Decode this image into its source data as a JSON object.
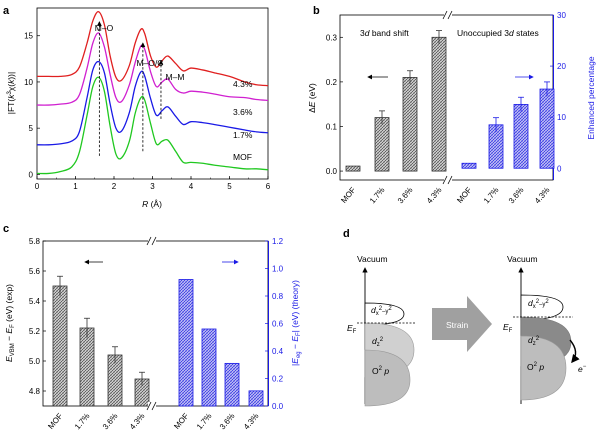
{
  "panels": {
    "a": "a",
    "b": "b",
    "c": "c",
    "d": "d"
  },
  "colors": {
    "red": "#e02020",
    "magenta": "#d020d0",
    "blue": "#1a1ae6",
    "green": "#20c820",
    "hatch_black": "#555555",
    "hatch_blue": "#3a3ae6",
    "axis_blue": "#1a1ae6",
    "grey_cone": "#bdbdbd",
    "dark_cone": "#8a8a8a",
    "arrow_grey": "#a0a0a0"
  },
  "chart_data": [
    {
      "id": "a",
      "type": "line",
      "xlabel": "R (Å)",
      "ylabel": "|FT(k³χ(k))|",
      "xlim": [
        0,
        6
      ],
      "ylim": [
        -0.5,
        18
      ],
      "xticks": [
        "0",
        "1",
        "2",
        "3",
        "4",
        "5",
        "6"
      ],
      "yticks": [
        "0",
        "5",
        "10",
        "15"
      ],
      "annotations": [
        "M–O",
        "M–O/C",
        "M–M"
      ],
      "series": [
        {
          "name": "4.3%",
          "color": "#e02020",
          "x": [
            0,
            0.3,
            0.6,
            0.9,
            1.1,
            1.3,
            1.45,
            1.6,
            1.75,
            1.9,
            2.05,
            2.2,
            2.4,
            2.55,
            2.7,
            2.8,
            2.95,
            3.1,
            3.25,
            3.4,
            3.6,
            3.8,
            4.0,
            4.3,
            4.6,
            5.0,
            5.4,
            5.7,
            6.0
          ],
          "y": [
            10.6,
            10.6,
            10.6,
            10.8,
            11.6,
            14.2,
            16.6,
            17.6,
            16.2,
            12.8,
            10.5,
            10.2,
            11.8,
            14.2,
            15.7,
            15.2,
            12.8,
            11.6,
            12.3,
            12.8,
            12.0,
            11.2,
            11.5,
            11.3,
            11.0,
            10.6,
            10.0,
            9.7,
            9.6
          ]
        },
        {
          "name": "3.6%",
          "color": "#d020d0",
          "x": [
            0,
            0.3,
            0.6,
            0.9,
            1.1,
            1.3,
            1.45,
            1.6,
            1.75,
            1.9,
            2.05,
            2.2,
            2.4,
            2.55,
            2.7,
            2.8,
            2.95,
            3.1,
            3.25,
            3.4,
            3.6,
            3.8,
            4.0,
            4.3,
            4.6,
            5.0,
            5.4,
            5.7,
            6.0
          ],
          "y": [
            7.5,
            7.5,
            7.6,
            7.8,
            8.6,
            11.5,
            14.2,
            15.3,
            13.8,
            10.8,
            8.3,
            7.9,
            9.7,
            12.1,
            13.9,
            13.5,
            11.1,
            9.5,
            10.0,
            10.3,
            9.2,
            8.8,
            9.0,
            8.9,
            8.7,
            8.4,
            8.3,
            8.1,
            8.0
          ]
        },
        {
          "name": "1.7%",
          "color": "#1a1ae6",
          "x": [
            0,
            0.3,
            0.6,
            0.9,
            1.1,
            1.3,
            1.45,
            1.6,
            1.75,
            1.9,
            2.05,
            2.2,
            2.4,
            2.55,
            2.7,
            2.8,
            2.95,
            3.1,
            3.25,
            3.4,
            3.6,
            3.8,
            4.0,
            4.3,
            4.6,
            5.0,
            5.4,
            5.7,
            6.0
          ],
          "y": [
            3.2,
            3.2,
            3.3,
            3.6,
            4.6,
            8.3,
            11.3,
            12.2,
            11.0,
            7.6,
            5.0,
            4.7,
            6.7,
            9.5,
            11.1,
            10.6,
            8.2,
            6.4,
            6.9,
            7.3,
            6.3,
            5.4,
            5.7,
            5.6,
            5.4,
            5.1,
            4.8,
            4.6,
            4.5
          ]
        },
        {
          "name": "MOF",
          "color": "#20c820",
          "x": [
            0,
            0.3,
            0.6,
            0.9,
            1.1,
            1.3,
            1.45,
            1.6,
            1.75,
            1.9,
            2.05,
            2.2,
            2.4,
            2.55,
            2.7,
            2.8,
            2.95,
            3.1,
            3.25,
            3.4,
            3.6,
            3.8,
            4.0,
            4.3,
            4.6,
            5.0,
            5.4,
            5.7,
            6.0
          ],
          "y": [
            0.1,
            0.1,
            0.3,
            0.8,
            2.4,
            6.4,
            9.5,
            10.5,
            9.0,
            5.2,
            2.2,
            1.8,
            3.6,
            6.6,
            8.3,
            8.0,
            5.5,
            3.3,
            3.6,
            3.7,
            2.5,
            1.3,
            1.3,
            1.2,
            1.0,
            0.8,
            0.6,
            0.6,
            0.5
          ]
        }
      ],
      "series_labels": [
        "4.3%",
        "3.6%",
        "1.7%",
        "MOF"
      ]
    },
    {
      "id": "b",
      "type": "bar",
      "left_axis": {
        "label": "ΔE (eV)",
        "ylim": [
          -0.02,
          0.35
        ],
        "ticks": [
          "0.0",
          "0.1",
          "0.2",
          "0.3"
        ]
      },
      "right_axis": {
        "label": "Enhanced percentage",
        "ylim": [
          -2.3,
          30
        ],
        "ticks": [
          "0",
          "10",
          "20",
          "30"
        ]
      },
      "groups": [
        {
          "title": "3d band shift",
          "axis": "left",
          "categories": [
            "MOF",
            "1.7%",
            "3.6%",
            "4.3%"
          ],
          "values": [
            0.0,
            0.12,
            0.21,
            0.3
          ],
          "errors": [
            0.0,
            0.015,
            0.015,
            0.015
          ]
        },
        {
          "title": "Unoccupied 3d states",
          "axis": "right",
          "categories": [
            "MOF",
            "1.7%",
            "3.6%",
            "4.3%"
          ],
          "values": [
            0.0,
            8.5,
            12.5,
            15.5
          ],
          "errors": [
            0.0,
            1.4,
            1.4,
            1.4
          ]
        }
      ]
    },
    {
      "id": "c",
      "type": "bar",
      "left_axis": {
        "label": "E_VBM − E_F (eV) (exp)",
        "ylim": [
          4.7,
          5.8
        ],
        "ticks": [
          "4.8",
          "5.0",
          "5.2",
          "5.4",
          "5.6",
          "5.8"
        ]
      },
      "right_axis": {
        "label": "|E_eg − E_F| (eV) (theory)",
        "ylim": [
          0.0,
          1.2
        ],
        "ticks": [
          "0.0",
          "0.2",
          "0.4",
          "0.6",
          "0.8",
          "1.0",
          "1.2"
        ]
      },
      "groups": [
        {
          "axis": "left",
          "categories": [
            "MOF",
            "1.7%",
            "3.6%",
            "4.3%"
          ],
          "values": [
            5.5,
            5.22,
            5.04,
            4.88
          ],
          "errors": [
            0.065,
            0.065,
            0.055,
            0.045
          ]
        },
        {
          "axis": "right",
          "categories": [
            "MOF",
            "1.7%",
            "3.6%",
            "4.3%"
          ],
          "values": [
            0.92,
            0.56,
            0.31,
            0.11
          ],
          "errors": [
            0,
            0,
            0,
            0
          ]
        }
      ]
    }
  ],
  "diagram_d": {
    "vacuum_left": "Vacuum",
    "vacuum_right": "Vacuum",
    "strain": "Strain",
    "ef": "E",
    "ef_sub": "F",
    "dx": "d",
    "dx_sub": "x",
    "dx_sup": "2",
    "dx_sub2": "–y",
    "dx_sup2": "2",
    "dz": "d",
    "dz_sub": "z",
    "dz_sup": "2",
    "o2p": "O",
    "o2p_sup": "2",
    "o2p_p": " p",
    "electron": "e",
    "electron_sup": "−"
  }
}
